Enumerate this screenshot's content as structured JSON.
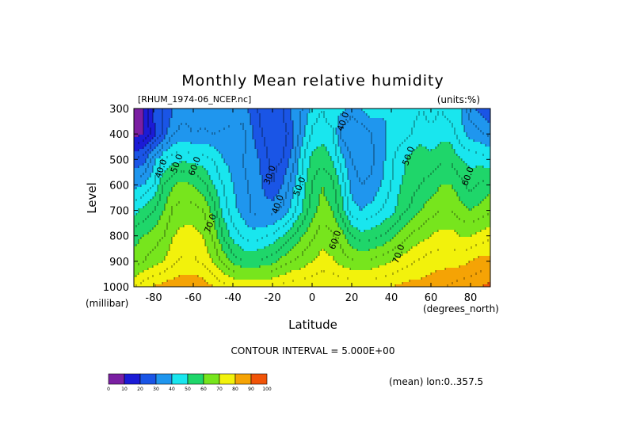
{
  "chart_data": {
    "type": "heatmap",
    "title": "Monthly Mean relative humidity",
    "dataset_label": "[RHUM_1974-06_NCEP.nc]",
    "units_label": "(units:%)",
    "xlabel": "Latitude",
    "x_units_label": "(degrees_north)",
    "ylabel": "Level",
    "y_units_label": "(millibar)",
    "xlim": [
      -90,
      90
    ],
    "ylim": [
      1000,
      300
    ],
    "x_ticks": [
      -80,
      -60,
      -40,
      -20,
      0,
      20,
      40,
      60,
      80
    ],
    "x_tick_labels": [
      "-80",
      "-60",
      "-40",
      "-20",
      "0",
      "20",
      "40",
      "60",
      "80"
    ],
    "y_ticks": [
      300,
      400,
      500,
      600,
      700,
      800,
      900,
      1000
    ],
    "y_tick_labels": [
      "300",
      "400",
      "500",
      "600",
      "700",
      "800",
      "900",
      "1000"
    ],
    "contour_interval_label": "CONTOUR INTERVAL = 5.000E+00",
    "footnote": "(mean) lon:0..357.5",
    "grid": false,
    "colorbar": {
      "position": "bottom-left",
      "bounds": [
        0,
        10,
        20,
        30,
        40,
        50,
        60,
        70,
        80,
        90,
        100
      ],
      "bound_labels": [
        "0",
        "10",
        "20",
        "30",
        "40",
        "50",
        "60",
        "70",
        "80",
        "90",
        "100"
      ],
      "colors": [
        "#7a1fa2",
        "#1b1bd6",
        "#1a55e6",
        "#1f96ee",
        "#19e6ee",
        "#1fd66a",
        "#77e51d",
        "#f2f20c",
        "#f5a305",
        "#f15408",
        "#ee0f0f"
      ]
    },
    "contour_labels": [
      {
        "text": "30.0",
        "lat": -20,
        "level": 565
      },
      {
        "text": "40.0",
        "lat": -75,
        "level": 540
      },
      {
        "text": "50.0",
        "lat": -67,
        "level": 520
      },
      {
        "text": "60.0",
        "lat": -58,
        "level": 530
      },
      {
        "text": "70.0",
        "lat": -50,
        "level": 755
      },
      {
        "text": "40.0",
        "lat": -16,
        "level": 680
      },
      {
        "text": "50.0",
        "lat": -5,
        "level": 610
      },
      {
        "text": "40.0",
        "lat": 17,
        "level": 355
      },
      {
        "text": "50.0",
        "lat": 50,
        "level": 490
      },
      {
        "text": "60.0",
        "lat": 13,
        "level": 820
      },
      {
        "text": "70.0",
        "lat": 45,
        "level": 875
      },
      {
        "text": "60.0",
        "lat": 80,
        "level": 570
      }
    ],
    "lat_grid": [
      -90,
      -85,
      -80,
      -75,
      -70,
      -65,
      -60,
      -55,
      -50,
      -45,
      -40,
      -35,
      -30,
      -25,
      -20,
      -15,
      -10,
      -5,
      0,
      5,
      10,
      15,
      20,
      25,
      30,
      35,
      40,
      45,
      50,
      55,
      60,
      65,
      70,
      75,
      80,
      85,
      90
    ],
    "level_grid": [
      300,
      400,
      500,
      600,
      700,
      800,
      900,
      1000
    ],
    "values": [
      [
        5,
        10,
        22,
        25,
        30,
        33,
        32,
        32,
        30,
        30,
        30,
        32,
        28,
        22,
        20,
        25,
        32,
        35,
        42,
        45,
        40,
        42,
        37,
        40,
        43,
        41,
        40,
        40,
        43,
        45,
        43,
        45,
        42,
        40,
        32,
        28,
        25
      ],
      [
        8,
        10,
        18,
        27,
        35,
        37,
        35,
        36,
        35,
        36,
        38,
        37,
        30,
        25,
        20,
        22,
        28,
        38,
        46,
        48,
        47,
        33,
        30,
        32,
        35,
        38,
        42,
        43,
        45,
        48,
        46,
        48,
        48,
        42,
        38,
        36,
        33
      ],
      [
        25,
        28,
        38,
        45,
        48,
        49,
        48,
        47,
        45,
        40,
        38,
        35,
        33,
        28,
        23,
        25,
        32,
        44,
        52,
        53,
        50,
        42,
        35,
        32,
        34,
        38,
        44,
        48,
        52,
        53,
        52,
        54,
        54,
        50,
        48,
        48,
        46
      ],
      [
        38,
        40,
        45,
        55,
        60,
        62,
        60,
        57,
        50,
        45,
        40,
        36,
        34,
        30,
        25,
        30,
        38,
        47,
        55,
        60,
        57,
        48,
        38,
        35,
        36,
        40,
        45,
        50,
        53,
        55,
        57,
        60,
        60,
        57,
        53,
        56,
        58
      ],
      [
        48,
        52,
        55,
        60,
        66,
        67,
        67,
        65,
        58,
        48,
        42,
        38,
        34,
        32,
        33,
        36,
        42,
        50,
        58,
        62,
        60,
        52,
        42,
        40,
        42,
        45,
        48,
        53,
        56,
        60,
        63,
        65,
        65,
        62,
        60,
        62,
        64
      ],
      [
        58,
        60,
        62,
        65,
        70,
        72,
        72,
        70,
        64,
        55,
        48,
        44,
        42,
        44,
        46,
        50,
        55,
        60,
        64,
        68,
        66,
        62,
        55,
        52,
        53,
        55,
        58,
        62,
        66,
        68,
        70,
        72,
        72,
        70,
        70,
        72,
        74
      ],
      [
        62,
        65,
        68,
        70,
        74,
        76,
        76,
        74,
        70,
        64,
        58,
        55,
        55,
        56,
        58,
        62,
        65,
        67,
        70,
        72,
        71,
        68,
        66,
        65,
        66,
        68,
        70,
        72,
        74,
        76,
        78,
        78,
        78,
        78,
        80,
        82,
        82
      ],
      [
        75,
        78,
        80,
        82,
        83,
        84,
        84,
        83,
        80,
        77,
        76,
        76,
        76,
        76,
        76,
        77,
        78,
        78,
        79,
        80,
        80,
        79,
        79,
        78,
        79,
        79,
        80,
        81,
        82,
        82,
        82,
        84,
        86,
        88,
        88,
        90,
        92
      ]
    ]
  }
}
